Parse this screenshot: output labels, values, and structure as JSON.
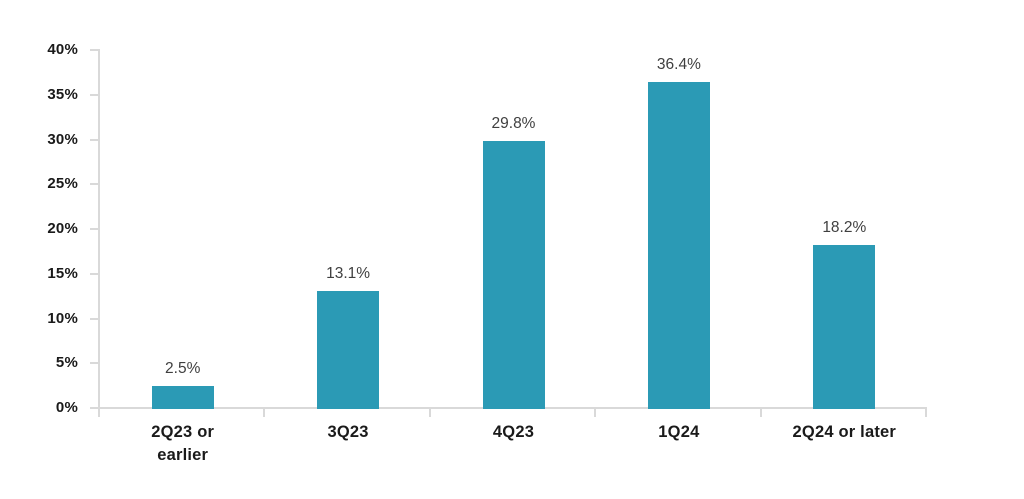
{
  "chart_data": {
    "type": "bar",
    "title": "",
    "categories": [
      "2Q23 or earlier",
      "3Q23",
      "4Q23",
      "1Q24",
      "2Q24 or later"
    ],
    "category_label_lines": [
      [
        "2Q23 or",
        "earlier"
      ],
      [
        "3Q23"
      ],
      [
        "4Q23"
      ],
      [
        "1Q24"
      ],
      [
        "2Q24 or later"
      ]
    ],
    "values": [
      2.5,
      13.1,
      29.8,
      36.4,
      18.2
    ],
    "bar_labels": [
      "2.5%",
      "13.1%",
      "29.8%",
      "36.4%",
      "18.2%"
    ],
    "xlabel": "",
    "ylabel": "",
    "ylim": [
      0,
      40
    ],
    "yticks": [
      0,
      5,
      10,
      15,
      20,
      25,
      30,
      35,
      40
    ],
    "ytick_labels": [
      "0%",
      "5%",
      "10%",
      "15%",
      "20%",
      "25%",
      "30%",
      "35%",
      "40%"
    ],
    "grid": false,
    "legend": "none",
    "colors": {
      "bar": "#2B9AB5",
      "axis_line": "#D9D9D9",
      "bar_label_text": "#3F3F3F",
      "axis_label_text": "#1A1A1A",
      "background": "#FFFFFF"
    }
  }
}
